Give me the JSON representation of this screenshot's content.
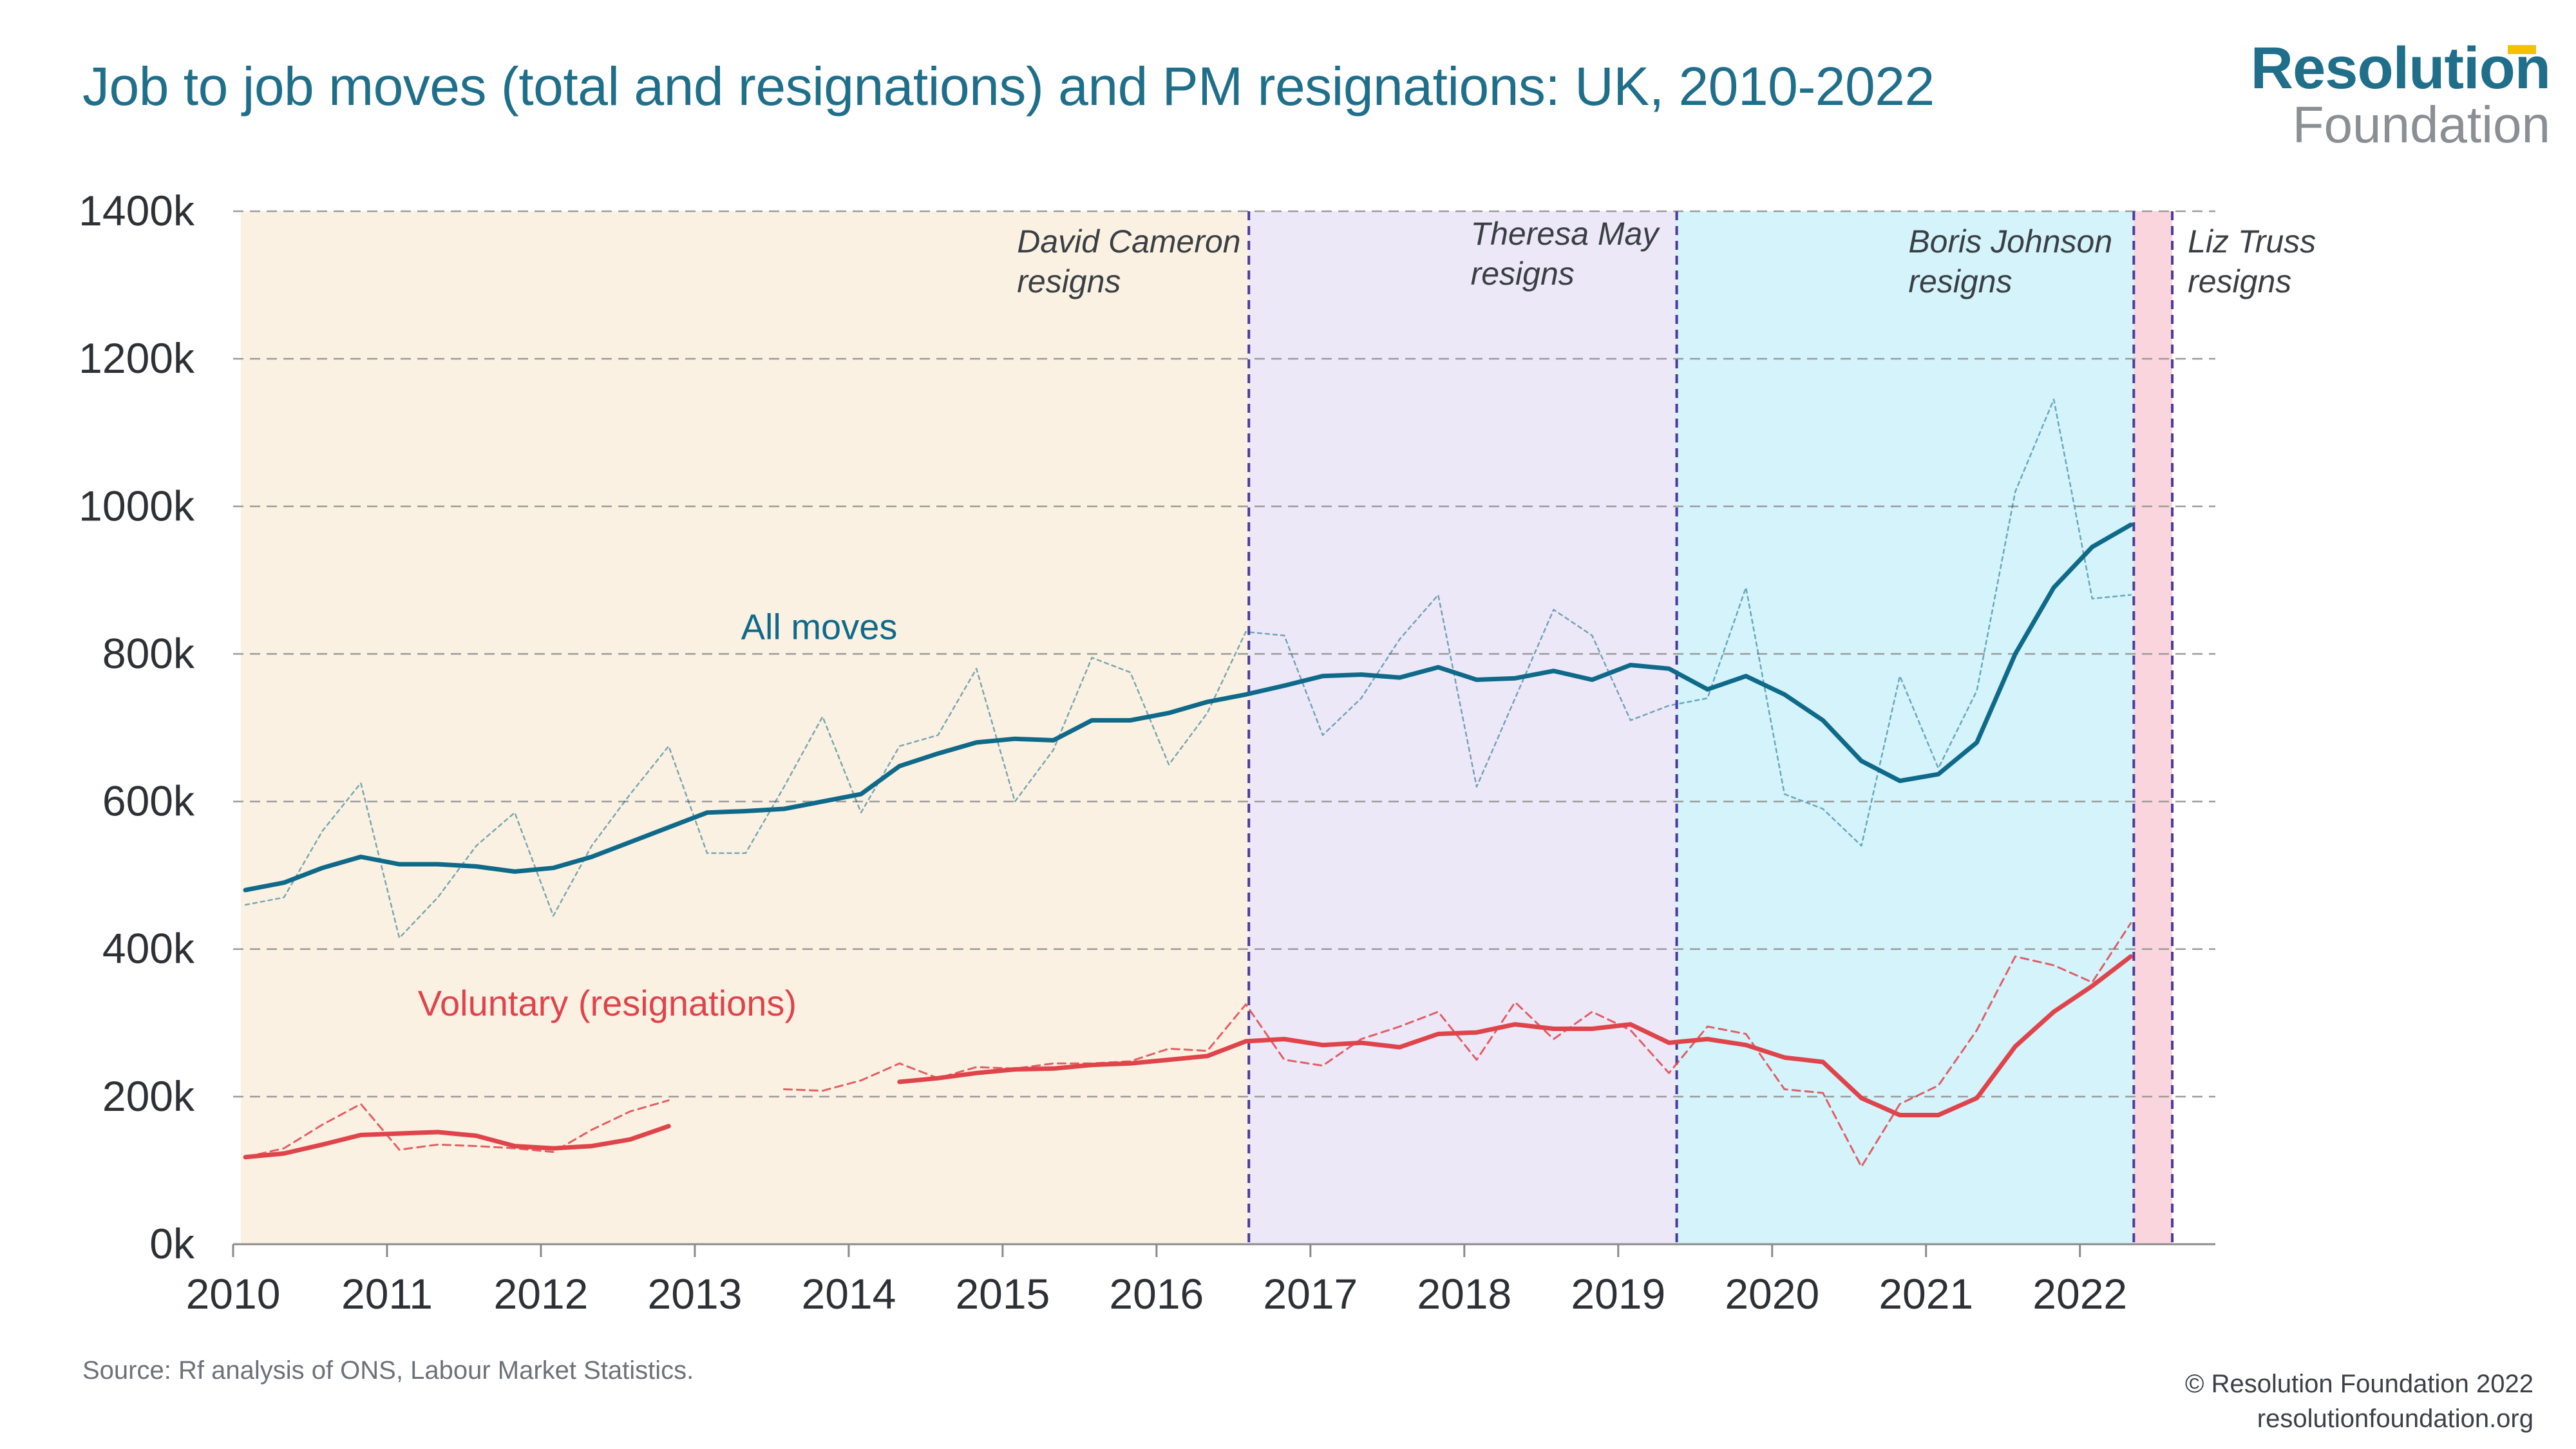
{
  "header": {
    "title": "Job to job moves (total and resignations) and PM resignations: UK, 2010-2022",
    "logo_line1": "Resolution",
    "logo_line2": "Foundation"
  },
  "footer": {
    "source": "Source: Rf analysis of ONS, Labour Market Statistics.",
    "copyright": "© Resolution Foundation 2022",
    "website": "resolutionfoundation.org"
  },
  "colors": {
    "all_moves": "#0f6a8a",
    "voluntary": "#e0444b",
    "cameron_bg": "#faf1e3",
    "may_bg": "#ece8f7",
    "johnson_bg": "#d4f3fb",
    "truss_bg": "#fad5dd",
    "divider": "#4a3c9a",
    "grid": "#9a9a9a"
  },
  "chart_data": {
    "type": "line",
    "title": "Job to job moves (total and resignations) and PM resignations: UK, 2010-2022",
    "xlim": [
      2010,
      2022.9
    ],
    "ylim": [
      0,
      1400
    ],
    "y_ticks": [
      0,
      200,
      400,
      600,
      800,
      1000,
      1200,
      1400
    ],
    "y_tick_labels": [
      "0k",
      "200k",
      "400k",
      "600k",
      "800k",
      "1000k",
      "1200k",
      "1400k"
    ],
    "x_ticks": [
      2010,
      2011,
      2012,
      2013,
      2014,
      2015,
      2016,
      2017,
      2018,
      2019,
      2020,
      2021,
      2022
    ],
    "x_tick_labels": [
      "2010",
      "2011",
      "2012",
      "2013",
      "2014",
      "2015",
      "2016",
      "2017",
      "2018",
      "2019",
      "2020",
      "2021",
      "2022"
    ],
    "grid": "horizontal dashed",
    "periods": [
      {
        "start": 2010.05,
        "end": 2016.6,
        "label": "David Cameron\nresigns"
      },
      {
        "start": 2016.6,
        "end": 2019.38,
        "label": "Theresa May\nresigns"
      },
      {
        "start": 2019.38,
        "end": 2022.35,
        "label": "Boris Johnson\nresigns"
      },
      {
        "start": 2022.35,
        "end": 2022.6,
        "label": "Liz Truss\nresigns"
      }
    ],
    "series": [
      {
        "name": "All moves",
        "style": "quarterly, dotted",
        "x": [
          2010.08,
          2010.33,
          2010.58,
          2010.83,
          2011.08,
          2011.33,
          2011.58,
          2011.83,
          2012.08,
          2012.33,
          2012.58,
          2012.83,
          2013.08,
          2013.33,
          2013.58,
          2013.83,
          2014.08,
          2014.33,
          2014.58,
          2014.83,
          2015.08,
          2015.33,
          2015.58,
          2015.83,
          2016.08,
          2016.33,
          2016.58,
          2016.83,
          2017.08,
          2017.33,
          2017.58,
          2017.83,
          2018.08,
          2018.33,
          2018.58,
          2018.83,
          2019.08,
          2019.33,
          2019.58,
          2019.83,
          2020.08,
          2020.33,
          2020.58,
          2020.83,
          2021.08,
          2021.33,
          2021.58,
          2021.83,
          2022.08,
          2022.33
        ],
        "values": [
          460,
          470,
          560,
          625,
          415,
          470,
          540,
          585,
          445,
          540,
          610,
          675,
          530,
          530,
          620,
          715,
          585,
          675,
          690,
          780,
          600,
          670,
          795,
          775,
          650,
          720,
          830,
          825,
          690,
          740,
          820,
          880,
          620,
          740,
          860,
          825,
          710,
          730,
          740,
          890,
          610,
          590,
          540,
          770,
          645,
          750,
          1020,
          1145,
          875,
          880
        ]
      },
      {
        "name": "All moves",
        "style": "rolling average, solid",
        "x": [
          2010.08,
          2010.33,
          2010.58,
          2010.83,
          2011.08,
          2011.33,
          2011.58,
          2011.83,
          2012.08,
          2012.33,
          2012.58,
          2012.83,
          2013.08,
          2013.33,
          2013.58,
          2013.83,
          2014.08,
          2014.33,
          2014.58,
          2014.83,
          2015.08,
          2015.33,
          2015.58,
          2015.83,
          2016.08,
          2016.33,
          2016.58,
          2016.83,
          2017.08,
          2017.33,
          2017.58,
          2017.83,
          2018.08,
          2018.33,
          2018.58,
          2018.83,
          2019.08,
          2019.33,
          2019.58,
          2019.83,
          2020.08,
          2020.33,
          2020.58,
          2020.83,
          2021.08,
          2021.33,
          2021.58,
          2021.83,
          2022.08,
          2022.33
        ],
        "values": [
          480,
          490,
          510,
          525,
          515,
          515,
          512,
          505,
          510,
          525,
          545,
          565,
          585,
          587,
          590,
          600,
          610,
          648,
          665,
          680,
          685,
          683,
          710,
          710,
          720,
          735,
          745,
          757,
          770,
          772,
          768,
          782,
          765,
          767,
          777,
          765,
          785,
          780,
          752,
          770,
          745,
          710,
          655,
          628,
          637,
          680,
          800,
          890,
          945,
          975
        ]
      },
      {
        "name": "Voluntary (resignations)",
        "style": "quarterly, dotted",
        "x": [
          2010.08,
          2010.33,
          2010.58,
          2010.83,
          2011.08,
          2011.33,
          2011.58,
          2011.83,
          2012.08,
          2012.33,
          2012.58,
          2012.83,
          null,
          2013.58,
          2013.83,
          2014.08,
          2014.33,
          2014.58,
          2014.83,
          2015.08,
          2015.33,
          2015.58,
          2015.83,
          2016.08,
          2016.33,
          2016.58,
          2016.83,
          2017.08,
          2017.33,
          2017.58,
          2017.83,
          2018.08,
          2018.33,
          2018.58,
          2018.83,
          2019.08,
          2019.33,
          2019.58,
          2019.83,
          2020.08,
          2020.33,
          2020.58,
          2020.83,
          2021.08,
          2021.33,
          2021.58,
          2021.83,
          2022.08,
          2022.33
        ],
        "values": [
          118,
          130,
          162,
          190,
          128,
          135,
          133,
          130,
          125,
          155,
          180,
          195,
          null,
          210,
          208,
          222,
          245,
          225,
          240,
          238,
          245,
          245,
          248,
          265,
          262,
          325,
          250,
          242,
          278,
          295,
          315,
          250,
          328,
          278,
          315,
          290,
          232,
          295,
          285,
          210,
          205,
          105,
          190,
          215,
          290,
          390,
          378,
          355,
          435
        ]
      },
      {
        "name": "Voluntary (resignations)",
        "style": "rolling average, solid",
        "x": [
          2010.08,
          2010.33,
          2010.58,
          2010.83,
          2011.08,
          2011.33,
          2011.58,
          2011.83,
          2012.08,
          2012.33,
          2012.58,
          2012.83,
          null,
          2014.33,
          2014.58,
          2014.83,
          2015.08,
          2015.33,
          2015.58,
          2015.83,
          2016.08,
          2016.33,
          2016.58,
          2016.83,
          2017.08,
          2017.33,
          2017.58,
          2017.83,
          2018.08,
          2018.33,
          2018.58,
          2018.83,
          2019.08,
          2019.33,
          2019.58,
          2019.83,
          2020.08,
          2020.33,
          2020.58,
          2020.83,
          2021.08,
          2021.33,
          2021.58,
          2021.83,
          2022.08,
          2022.33
        ],
        "values": [
          118,
          123,
          135,
          148,
          150,
          152,
          147,
          133,
          130,
          133,
          142,
          160,
          null,
          220,
          225,
          232,
          237,
          238,
          243,
          245,
          250,
          255,
          275,
          278,
          270,
          273,
          267,
          285,
          287,
          298,
          292,
          292,
          298,
          273,
          278,
          270,
          253,
          247,
          198,
          175,
          175,
          198,
          268,
          315,
          350,
          390
        ]
      }
    ],
    "annotations": [
      {
        "text": "All moves",
        "x": 2013.3,
        "y": 820
      },
      {
        "text": "Voluntary (resignations)",
        "x": 2011.2,
        "y": 310
      }
    ]
  }
}
